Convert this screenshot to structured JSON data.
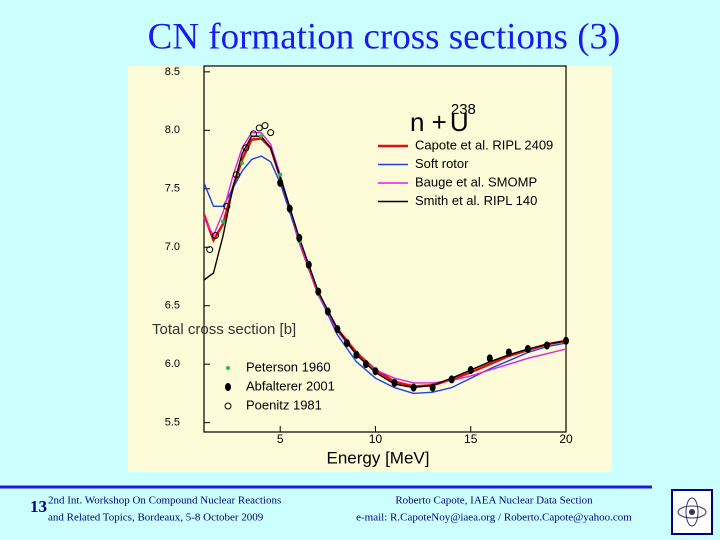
{
  "slide": {
    "title": "CN formation cross sections (3)",
    "page_number": "13",
    "footer_left": [
      "2nd Int. Workshop On Compound Nuclear Reactions",
      "and Related Topics, Bordeaux, 5-8 October 2009"
    ],
    "footer_right": [
      "Roberto Capote, IAEA Nuclear Data Section",
      "e-mail: R.CapoteNoy@iaea.org / Roberto.Capote@yahoo.com"
    ]
  },
  "chart_data": {
    "type": "line",
    "legend_title": [
      "n +",
      "238",
      "U"
    ],
    "xlabel": "Energy [MeV]",
    "ylabel": "Total cross section [b]",
    "xlim": [
      1,
      20
    ],
    "ylim": [
      5.42,
      8.55
    ],
    "xticks": [
      5,
      10,
      15,
      20
    ],
    "yticks": [
      5.5,
      {
        "value": 6,
        "label": "6.0"
      },
      6.5,
      {
        "value": 7,
        "label": "7.0"
      },
      7.5,
      {
        "value": 8,
        "label": "8.0"
      },
      8.5
    ],
    "x": [
      1,
      1.5,
      2,
      2.5,
      3,
      3.5,
      4,
      4.5,
      5,
      6,
      7,
      8,
      9,
      10,
      11,
      12,
      13,
      14,
      15,
      16,
      17,
      18,
      19,
      20
    ],
    "series": [
      {
        "name": "Capote et al. RIPL 2409",
        "color": "#e01010",
        "values": [
          7.28,
          7.06,
          7.2,
          7.5,
          7.75,
          7.92,
          7.93,
          7.85,
          7.6,
          7.05,
          6.6,
          6.3,
          6.1,
          5.95,
          5.85,
          5.81,
          5.82,
          5.87,
          5.93,
          6.0,
          6.07,
          6.12,
          6.17,
          6.2
        ]
      },
      {
        "name": "Soft rotor",
        "color": "#2040e0",
        "values": [
          7.55,
          7.35,
          7.35,
          7.5,
          7.65,
          7.75,
          7.78,
          7.73,
          7.55,
          7.05,
          6.6,
          6.25,
          6.02,
          5.88,
          5.8,
          5.75,
          5.76,
          5.8,
          5.88,
          5.96,
          6.03,
          6.1,
          6.15,
          6.18
        ]
      },
      {
        "name": "Bauge et al. SMOMP",
        "color": "#e020e0",
        "values": [
          7.25,
          7.1,
          7.3,
          7.6,
          7.85,
          7.98,
          7.98,
          7.88,
          7.62,
          7.05,
          6.6,
          6.28,
          6.08,
          5.95,
          5.88,
          5.84,
          5.84,
          5.86,
          5.9,
          5.95,
          6.0,
          6.05,
          6.09,
          6.13
        ]
      },
      {
        "name": "Smith et al. RIPL 140",
        "color": "#000000",
        "values": [
          6.72,
          6.78,
          7.1,
          7.5,
          7.8,
          7.95,
          7.95,
          7.85,
          7.6,
          7.08,
          6.62,
          6.3,
          6.08,
          5.93,
          5.83,
          5.8,
          5.82,
          5.88,
          5.95,
          6.02,
          6.08,
          6.13,
          6.17,
          6.2
        ]
      }
    ],
    "scatter_series": [
      {
        "name": "Peterson 1960",
        "color": "#20c040",
        "marker": "dot",
        "x": [
          2,
          3,
          4,
          5,
          6,
          7
        ],
        "values": [
          7.22,
          7.72,
          7.95,
          7.62,
          7.05,
          6.6
        ]
      },
      {
        "name": "Abfalterer 2001",
        "color": "#000000",
        "marker": "filled",
        "x": [
          5,
          5.5,
          6,
          6.5,
          7,
          7.5,
          8,
          8.5,
          9,
          9.5,
          10,
          11,
          12,
          13,
          14,
          15,
          16,
          17,
          18,
          19,
          20
        ],
        "values": [
          7.55,
          7.33,
          7.08,
          6.85,
          6.62,
          6.45,
          6.3,
          6.18,
          6.08,
          6.0,
          5.94,
          5.84,
          5.8,
          5.8,
          5.87,
          5.95,
          6.05,
          6.1,
          6.13,
          6.16,
          6.2
        ]
      },
      {
        "name": "Poenitz 1981",
        "color": "#000000",
        "marker": "open",
        "x": [
          1.3,
          1.6,
          2.2,
          2.7,
          3.2,
          3.6,
          3.9,
          4.2,
          4.5
        ],
        "values": [
          6.98,
          7.1,
          7.35,
          7.62,
          7.85,
          7.97,
          8.02,
          8.04,
          7.98
        ]
      }
    ]
  }
}
